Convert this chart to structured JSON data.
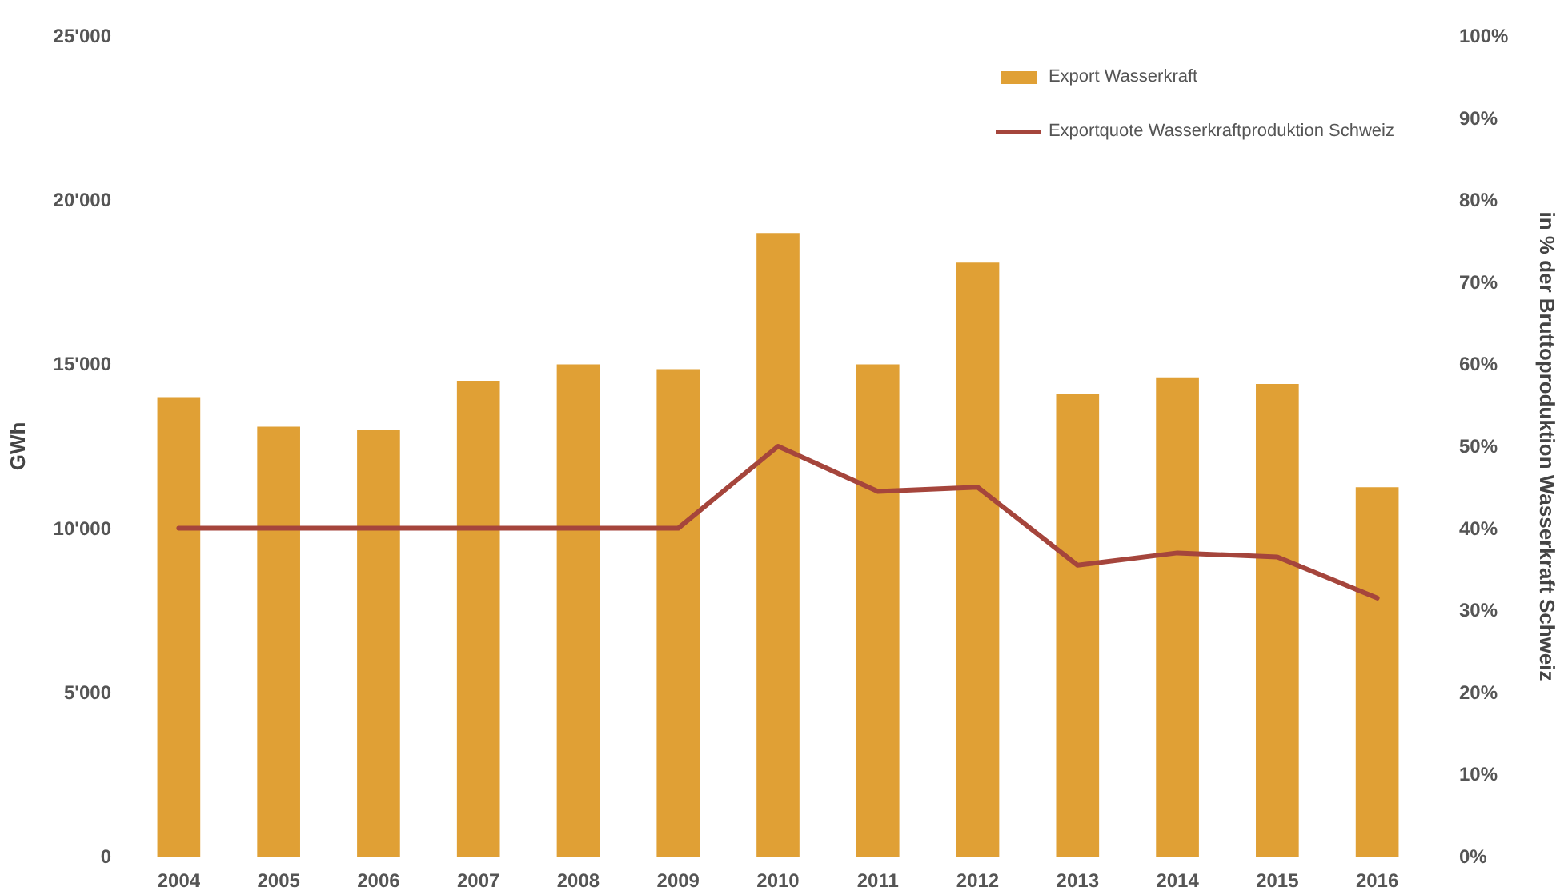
{
  "chart_data": {
    "type": "bar",
    "categories": [
      "2004",
      "2005",
      "2006",
      "2007",
      "2008",
      "2009",
      "2010",
      "2011",
      "2012",
      "2013",
      "2014",
      "2015",
      "2016"
    ],
    "series": [
      {
        "name": "Export Wasserkraft",
        "color": "#e0a035",
        "values": [
          14000,
          13100,
          13000,
          14500,
          15000,
          14850,
          19000,
          15000,
          18100,
          14100,
          14600,
          14400,
          11250
        ]
      },
      {
        "name": "Exportquote Wasserkraftproduktion Schweiz",
        "type": "line",
        "axis": "y2",
        "color": "#a5453c",
        "values": [
          40,
          40,
          40,
          40,
          40,
          40,
          50,
          44.5,
          45,
          35.5,
          37,
          36.5,
          31.5
        ]
      }
    ],
    "ylabel": "GWh",
    "y2label": "in % der Bruttoproduktion Wasserkraft Schweiz",
    "ylim": [
      0,
      25000
    ],
    "yticks": [
      0,
      {
        "value": 5000,
        "label": "5'000"
      },
      {
        "value": 10000,
        "label": "10'000"
      },
      {
        "value": 15000,
        "label": "15'000"
      },
      {
        "value": 20000,
        "label": "20'000"
      },
      {
        "value": 25000,
        "label": "25'000"
      }
    ],
    "y2lim": [
      0,
      100
    ],
    "y2ticks": [
      {
        "value": 0,
        "label": "0%"
      },
      {
        "value": 10,
        "label": "10%"
      },
      {
        "value": 20,
        "label": "20%"
      },
      {
        "value": 30,
        "label": "30%"
      },
      {
        "value": 40,
        "label": "40%"
      },
      {
        "value": 50,
        "label": "50%"
      },
      {
        "value": 60,
        "label": "60%"
      },
      {
        "value": 70,
        "label": "70%"
      },
      {
        "value": 80,
        "label": "80%"
      },
      {
        "value": 90,
        "label": "90%"
      },
      {
        "value": 100,
        "label": "100%"
      }
    ],
    "legend": "top right",
    "grid": false
  }
}
